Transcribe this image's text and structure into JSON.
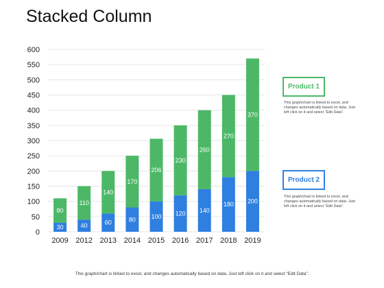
{
  "page": {
    "title": "Stacked Column"
  },
  "legend": [
    {
      "name": "Product 1",
      "color": "#4cb867",
      "description": "This graph/chart is linked to excel, and changes automatically based on data. Just left click on it and select “Edit Data”."
    },
    {
      "name": "Product 2",
      "color": "#2e7fdf",
      "description": "This graph/chart is linked to excel, and changes automatically based on data. Just left click on it and select “Edit Data”."
    }
  ],
  "footer": {
    "text": "This graph/chart is linked to excel, and changes automatically based on data. Just left click on it and select “Edit Data”."
  },
  "chart_data": {
    "type": "bar",
    "stacked": true,
    "title": "Stacked Column",
    "xlabel": "",
    "ylabel": "",
    "categories": [
      "2009",
      "2012",
      "2013",
      "2014",
      "2015",
      "2016",
      "2017",
      "2018",
      "2019"
    ],
    "series": [
      {
        "name": "Product 2",
        "color": "#2e7fdf",
        "values": [
          30,
          40,
          60,
          80,
          100,
          120,
          140,
          180,
          200
        ]
      },
      {
        "name": "Product 1",
        "color": "#4cb867",
        "values": [
          80,
          110,
          140,
          170,
          206,
          230,
          260,
          270,
          370
        ]
      }
    ],
    "ylim": [
      0,
      600
    ],
    "yticks": [
      0,
      50,
      100,
      150,
      200,
      250,
      300,
      350,
      400,
      450,
      500,
      550,
      600
    ],
    "grid": true,
    "legend_position": "right"
  }
}
